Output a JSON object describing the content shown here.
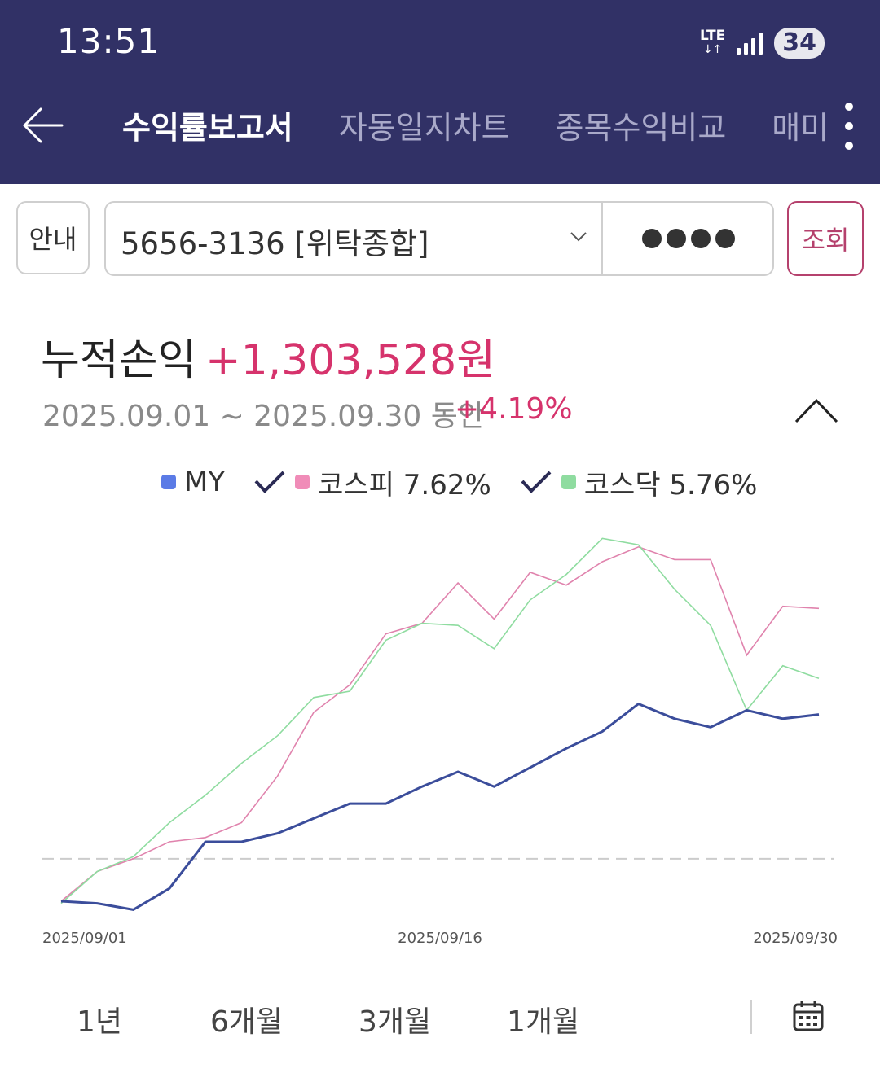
{
  "status_bar": {
    "time": "13:51",
    "network": "LTE",
    "battery": "34"
  },
  "nav": {
    "tabs": [
      {
        "label": "수익률보고서",
        "active": true
      },
      {
        "label": "자동일지차트",
        "active": false
      },
      {
        "label": "종목수익비교",
        "active": false
      },
      {
        "label": "매미",
        "active": false
      }
    ]
  },
  "account_bar": {
    "info_label": "안내",
    "account": "5656-3136 [위탁종합]",
    "password_mask": "●●●●",
    "search_label": "조회"
  },
  "summary": {
    "label": "누적손익",
    "value": "+1,303,528원",
    "period": "2025.09.01 ~ 2025.09.30 동안",
    "rate": "+4.19%"
  },
  "legend": {
    "my": "MY",
    "kospi": "코스피 7.62%",
    "kosdaq": "코스닥 5.76%"
  },
  "colors": {
    "my": "#3b4d9b",
    "kospi": "#e083ad",
    "kosdaq": "#8fdca0",
    "accent": "#d6336c",
    "header": "#313166"
  },
  "chart_data": {
    "type": "line",
    "x_labels": [
      "2025/09/01",
      "2025/09/16",
      "2025/09/30"
    ],
    "ylim": [
      -2.5,
      14
    ],
    "series": [
      {
        "name": "MY",
        "values": [
          -2.0,
          -2.1,
          -2.4,
          -1.4,
          0.8,
          0.8,
          1.2,
          1.9,
          2.6,
          2.6,
          3.4,
          4.1,
          3.4,
          4.3,
          5.2,
          6.0,
          7.3,
          6.6,
          6.2,
          7.0,
          6.6,
          6.8
        ]
      },
      {
        "name": "코스피 7.62%",
        "values": [
          -2.0,
          -0.6,
          0.0,
          0.8,
          1.0,
          1.7,
          3.9,
          6.9,
          8.2,
          10.6,
          11.1,
          13.0,
          11.3,
          13.5,
          12.9,
          14.0,
          14.7,
          14.1,
          14.1,
          9.6,
          11.9,
          11.8
        ]
      },
      {
        "name": "코스닥 5.76%",
        "values": [
          -2.1,
          -0.6,
          0.1,
          1.7,
          3.0,
          4.5,
          5.8,
          7.6,
          7.9,
          10.3,
          11.1,
          11.0,
          9.9,
          12.2,
          13.4,
          15.1,
          14.8,
          12.7,
          11.0,
          7.0,
          9.1,
          8.5
        ]
      }
    ],
    "baseline": 0,
    "grid": false
  },
  "periods": [
    "1년",
    "6개월",
    "3개월",
    "1개월"
  ]
}
